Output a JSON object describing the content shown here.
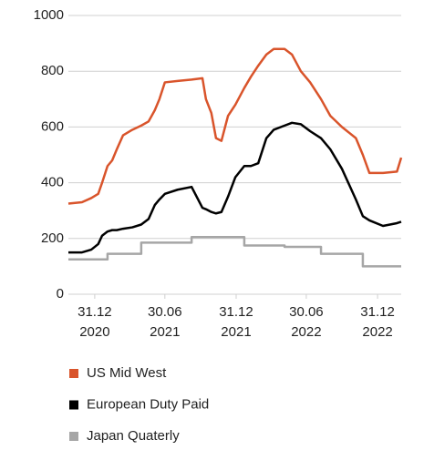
{
  "chart_data": {
    "type": "line",
    "x": [
      "2020-10-24",
      "2020-11-28",
      "2020-12-22",
      "2021-01-09",
      "2021-01-19",
      "2021-02-02",
      "2021-02-14",
      "2021-02-26",
      "2021-03-14",
      "2021-04-07",
      "2021-04-30",
      "2021-05-19",
      "2021-06-04",
      "2021-06-16",
      "2021-06-30",
      "2021-08-02",
      "2021-09-07",
      "2021-10-05",
      "2021-10-14",
      "2021-10-28",
      "2021-11-09",
      "2021-11-23",
      "2021-12-10",
      "2021-12-29",
      "2022-01-21",
      "2022-02-07",
      "2022-02-26",
      "2022-03-19",
      "2022-04-07",
      "2022-05-05",
      "2022-05-24",
      "2022-06-16",
      "2022-07-10",
      "2022-08-07",
      "2022-08-31",
      "2022-09-30",
      "2022-11-05",
      "2022-11-23",
      "2022-12-10",
      "2023-01-14",
      "2023-02-19",
      "2023-03-02"
    ],
    "series": [
      {
        "name": "US Mid West",
        "color": "#d9542b",
        "values": [
          325,
          330,
          345,
          360,
          400,
          460,
          480,
          520,
          570,
          590,
          605,
          620,
          660,
          700,
          760,
          765,
          770,
          775,
          700,
          650,
          560,
          550,
          640,
          680,
          740,
          780,
          820,
          860,
          880,
          880,
          860,
          800,
          760,
          700,
          640,
          600,
          560,
          500,
          435,
          435,
          440,
          490
        ]
      },
      {
        "name": "European Duty Paid",
        "color": "#000000",
        "values": [
          150,
          150,
          160,
          180,
          210,
          225,
          230,
          230,
          235,
          240,
          250,
          270,
          320,
          340,
          360,
          375,
          385,
          310,
          305,
          295,
          290,
          295,
          350,
          420,
          460,
          460,
          470,
          560,
          590,
          605,
          615,
          610,
          585,
          560,
          520,
          450,
          340,
          280,
          265,
          245,
          255,
          260
        ]
      },
      {
        "name": "Japan Quaterly",
        "color": "#a6a6a6",
        "step": true,
        "values": [
          125,
          125,
          125,
          125,
          125,
          145,
          145,
          145,
          145,
          145,
          185,
          185,
          185,
          185,
          185,
          185,
          205,
          205,
          205,
          205,
          205,
          205,
          205,
          205,
          175,
          175,
          175,
          175,
          175,
          170,
          170,
          170,
          170,
          145,
          145,
          145,
          145,
          100,
          100,
          100,
          100,
          100
        ]
      }
    ],
    "xlim": [
      "2020-10-24",
      "2023-03-02"
    ],
    "xticks": [
      {
        "value": "2020-12-31",
        "label": [
          "31.12",
          "2020"
        ]
      },
      {
        "value": "2021-06-30",
        "label": [
          "30.06",
          "2021"
        ]
      },
      {
        "value": "2021-12-31",
        "label": [
          "31.12",
          "2021"
        ]
      },
      {
        "value": "2022-06-30",
        "label": [
          "30.06",
          "2022"
        ]
      },
      {
        "value": "2022-12-31",
        "label": [
          "31.12",
          "2022"
        ]
      }
    ],
    "ylim": [
      0,
      1000
    ],
    "yticks": [
      0,
      200,
      400,
      600,
      800,
      1000
    ],
    "grid": true,
    "legend": "bottom"
  }
}
